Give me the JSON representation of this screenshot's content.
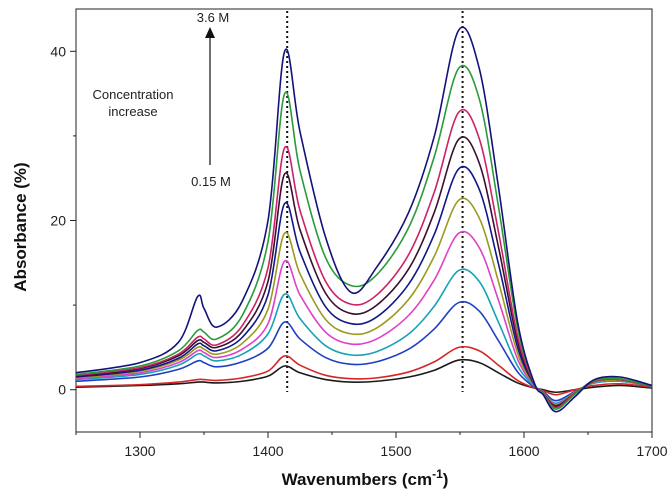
{
  "chart_data": {
    "type": "line",
    "title": "",
    "xlabel": "Wavenumbers (cm",
    "xlabel_sup": "-1",
    "xlabel_close": ")",
    "ylabel": "Absorbance (%)",
    "xlim": [
      1250,
      1700
    ],
    "ylim": [
      -5,
      45
    ],
    "x_ticks": [
      1300,
      1400,
      1500,
      1600,
      1700
    ],
    "y_ticks": [
      0,
      20,
      40
    ],
    "grid": false,
    "legend": "none",
    "reference_lines": [
      1415,
      1552
    ],
    "annotations": {
      "top_label": "3.6 M",
      "bottom_label": "0.15 M",
      "direction_label_line1": "Concentration",
      "direction_label_line2": "increase"
    },
    "x": [
      1250,
      1300,
      1330,
      1345,
      1350,
      1360,
      1380,
      1400,
      1413,
      1425,
      1445,
      1465,
      1485,
      1510,
      1530,
      1549,
      1565,
      1580,
      1595,
      1608,
      1615,
      1625,
      1640,
      1655,
      1675,
      1700
    ],
    "series": [
      {
        "color": "#1a1a1a",
        "values": [
          0.3,
          0.5,
          0.7,
          0.9,
          0.9,
          0.8,
          1.0,
          1.6,
          2.8,
          2.0,
          1.2,
          0.9,
          1.0,
          1.5,
          2.3,
          3.5,
          3.2,
          2.0,
          0.8,
          0.2,
          0.0,
          -0.3,
          0.0,
          0.3,
          0.5,
          0.2
        ]
      },
      {
        "color": "#d62728",
        "values": [
          0.4,
          0.6,
          0.9,
          1.2,
          1.2,
          1.1,
          1.4,
          2.2,
          4.0,
          2.9,
          1.7,
          1.3,
          1.4,
          2.1,
          3.3,
          5.0,
          4.6,
          2.9,
          1.1,
          0.2,
          -0.1,
          -0.6,
          0.0,
          0.5,
          0.7,
          0.3
        ]
      },
      {
        "color": "#1f3fc4",
        "values": [
          1.0,
          1.5,
          2.4,
          3.4,
          3.2,
          2.7,
          3.3,
          4.9,
          8.0,
          6.0,
          3.8,
          3.0,
          3.3,
          4.8,
          7.2,
          10.3,
          9.3,
          5.8,
          2.1,
          0.3,
          -0.2,
          -1.3,
          -0.2,
          0.8,
          1.0,
          0.4
        ]
      },
      {
        "color": "#17a2b8",
        "values": [
          1.2,
          1.8,
          2.9,
          4.2,
          4.0,
          3.4,
          4.2,
          6.6,
          11.3,
          8.4,
          5.2,
          4.1,
          4.5,
          6.6,
          9.9,
          14.1,
          12.8,
          8.0,
          2.8,
          0.4,
          -0.3,
          -1.6,
          -0.3,
          0.8,
          1.0,
          0.4
        ]
      },
      {
        "color": "#e040c8",
        "values": [
          1.3,
          2.0,
          3.2,
          4.6,
          4.4,
          3.8,
          4.8,
          7.8,
          15.2,
          11.2,
          6.8,
          5.4,
          6.0,
          8.8,
          13.0,
          18.5,
          16.8,
          10.6,
          3.6,
          0.5,
          -0.3,
          -1.7,
          -0.3,
          0.9,
          1.1,
          0.4
        ]
      },
      {
        "color": "#9a9a20",
        "values": [
          1.4,
          2.2,
          3.5,
          5.0,
          4.8,
          4.2,
          5.5,
          9.5,
          18.5,
          13.7,
          8.3,
          6.6,
          7.3,
          10.7,
          15.8,
          22.4,
          20.3,
          12.8,
          4.3,
          0.5,
          -0.3,
          -1.8,
          -0.3,
          0.9,
          1.1,
          0.4
        ]
      },
      {
        "color": "#10188a",
        "values": [
          1.5,
          2.3,
          3.7,
          5.4,
          5.2,
          4.6,
          6.2,
          11.2,
          22.0,
          16.3,
          9.8,
          7.8,
          8.6,
          12.5,
          18.4,
          26.1,
          23.7,
          14.9,
          5.0,
          0.6,
          -0.4,
          -1.9,
          -0.4,
          1.0,
          1.2,
          0.4
        ]
      },
      {
        "color": "#3a1030",
        "values": [
          1.6,
          2.5,
          4.0,
          5.8,
          5.6,
          5.0,
          6.9,
          12.8,
          25.5,
          18.9,
          11.4,
          9.0,
          10.0,
          14.3,
          21.0,
          29.6,
          26.8,
          16.9,
          5.7,
          0.7,
          -0.4,
          -2.0,
          -0.4,
          1.0,
          1.2,
          0.4
        ]
      },
      {
        "color": "#cc2266",
        "values": [
          1.7,
          2.6,
          4.2,
          6.2,
          6.0,
          5.3,
          7.6,
          14.4,
          28.6,
          21.2,
          12.8,
          10.1,
          11.2,
          16.0,
          23.4,
          32.8,
          29.7,
          18.7,
          6.3,
          0.7,
          -0.4,
          -2.1,
          -0.4,
          1.0,
          1.2,
          0.4
        ]
      },
      {
        "color": "#2a9a3a",
        "values": [
          1.8,
          2.8,
          4.6,
          7.0,
          6.8,
          6.0,
          8.8,
          17.5,
          35.0,
          25.9,
          15.6,
          12.3,
          13.6,
          19.2,
          27.6,
          38.0,
          34.4,
          21.7,
          7.3,
          0.8,
          -0.5,
          -2.3,
          -0.5,
          1.1,
          1.3,
          0.4
        ]
      },
      {
        "color": "#12127a",
        "values": [
          2.0,
          3.2,
          5.6,
          11.0,
          9.6,
          7.4,
          10.5,
          20.0,
          40.0,
          30.5,
          18.0,
          11.5,
          14.5,
          21.0,
          30.0,
          42.5,
          38.0,
          24.0,
          8.0,
          0.8,
          -0.6,
          -2.6,
          -0.8,
          1.2,
          1.5,
          0.5
        ]
      }
    ]
  }
}
